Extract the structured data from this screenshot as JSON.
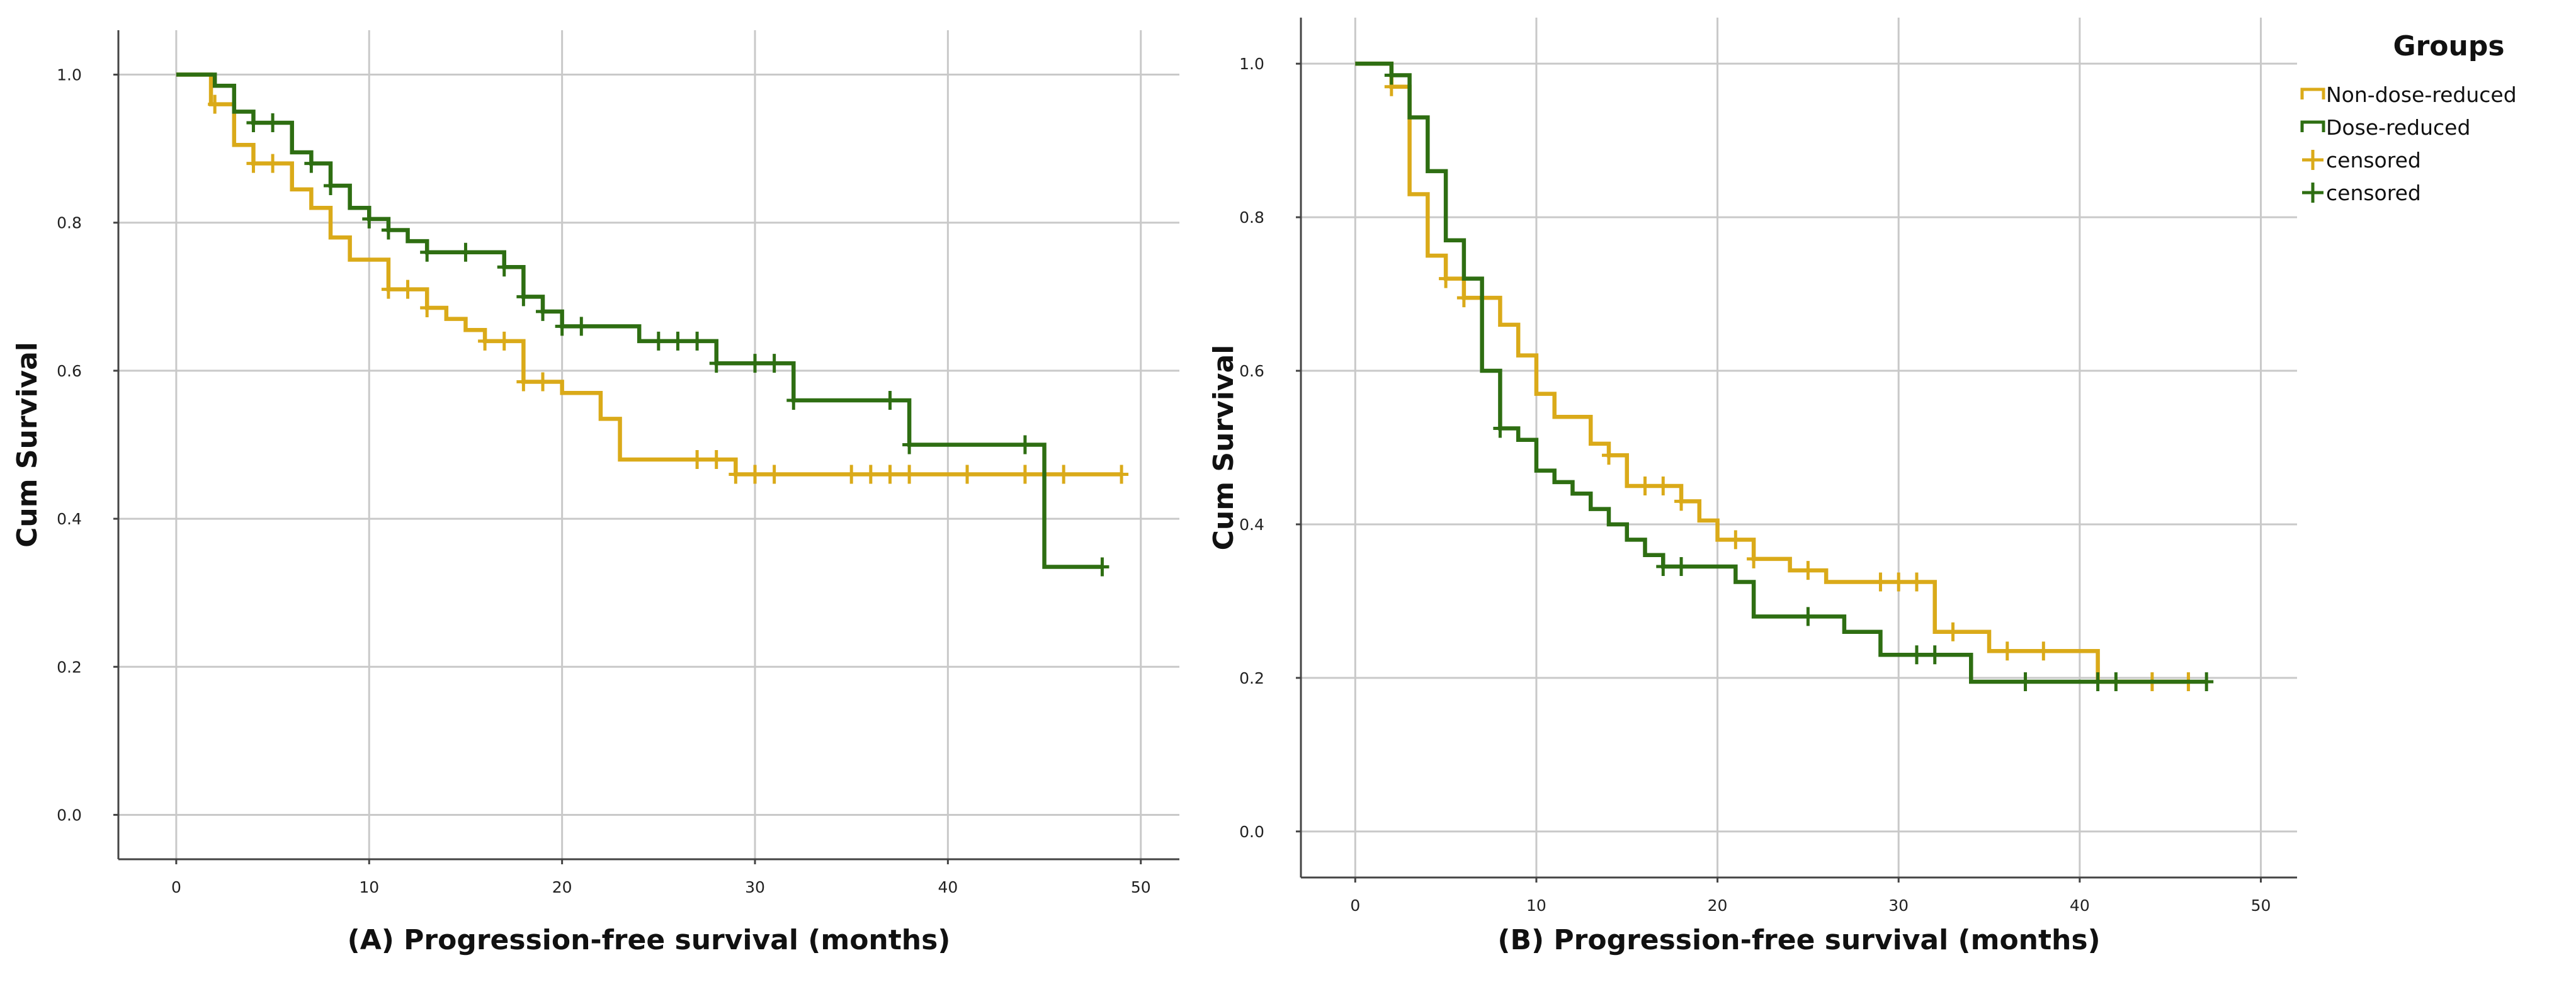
{
  "colors": {
    "non_dose_reduced": "#DAAA19",
    "dose_reduced": "#2E6E12",
    "grid": "#C9C9C9",
    "axis": "#444444"
  },
  "legend": {
    "title": "Groups",
    "items": [
      {
        "label": "Non-dose-reduced",
        "kind": "line",
        "series": "non"
      },
      {
        "label": "Dose-reduced",
        "kind": "line",
        "series": "dose"
      },
      {
        "label": "censored",
        "kind": "censor",
        "series": "non"
      },
      {
        "label": "censored",
        "kind": "censor",
        "series": "dose"
      }
    ]
  },
  "chart_data": [
    {
      "type": "line",
      "subtype": "kaplan-meier step",
      "title": "",
      "xlabel": "(A) Progression-free survival (months)",
      "ylabel": "Cum Survival",
      "xlim": [
        -3,
        52
      ],
      "ylim": [
        -0.06,
        1.06
      ],
      "xticks": [
        0,
        10,
        20,
        30,
        40,
        50
      ],
      "yticks": [
        "0.0",
        "0.2",
        "0.4",
        "0.6",
        "0.8",
        "1.0"
      ],
      "ytick_values": [
        0,
        0.2,
        0.4,
        0.6,
        0.8,
        1.0
      ],
      "grid": true,
      "series": [
        {
          "name": "Non-dose-reduced",
          "key": "non",
          "steps": [
            [
              0,
              1.0
            ],
            [
              1.8,
              0.96
            ],
            [
              3,
              0.905
            ],
            [
              4,
              0.88
            ],
            [
              6,
              0.845
            ],
            [
              7,
              0.82
            ],
            [
              8,
              0.78
            ],
            [
              9,
              0.75
            ],
            [
              11,
              0.71
            ],
            [
              13,
              0.685
            ],
            [
              14,
              0.67
            ],
            [
              15,
              0.655
            ],
            [
              16,
              0.64
            ],
            [
              18,
              0.585
            ],
            [
              20,
              0.57
            ],
            [
              22,
              0.535
            ],
            [
              23,
              0.48
            ],
            [
              29,
              0.46
            ]
          ],
          "end_x": 49,
          "censored_x": [
            2,
            4,
            5,
            11,
            12,
            13,
            16,
            17,
            18,
            19,
            27,
            28,
            29,
            30,
            31,
            35,
            36,
            37,
            38,
            41,
            44,
            46,
            49
          ]
        },
        {
          "name": "Dose-reduced",
          "key": "dose",
          "steps": [
            [
              0,
              1.0
            ],
            [
              2,
              0.985
            ],
            [
              3,
              0.95
            ],
            [
              4,
              0.935
            ],
            [
              6,
              0.895
            ],
            [
              7,
              0.88
            ],
            [
              8,
              0.85
            ],
            [
              9,
              0.82
            ],
            [
              10,
              0.805
            ],
            [
              11,
              0.79
            ],
            [
              12,
              0.775
            ],
            [
              13,
              0.76
            ],
            [
              17,
              0.74
            ],
            [
              18,
              0.7
            ],
            [
              19,
              0.68
            ],
            [
              20,
              0.66
            ],
            [
              24,
              0.64
            ],
            [
              28,
              0.61
            ],
            [
              32,
              0.56
            ],
            [
              38,
              0.5
            ],
            [
              45,
              0.335
            ]
          ],
          "end_x": 48,
          "censored_x": [
            4,
            5,
            7,
            8,
            10,
            11,
            13,
            15,
            17,
            18,
            19,
            20,
            21,
            25,
            26,
            27,
            28,
            30,
            31,
            32,
            37,
            38,
            44,
            48
          ]
        }
      ]
    },
    {
      "type": "line",
      "subtype": "kaplan-meier step",
      "title": "",
      "xlabel": "(B) Progression-free survival (months)",
      "ylabel": "Cum Survival",
      "xlim": [
        -3,
        52
      ],
      "ylim": [
        -0.06,
        1.06
      ],
      "xticks": [
        0,
        10,
        20,
        30,
        40,
        50
      ],
      "yticks": [
        "0.0",
        "0.2",
        "0.4",
        "0.6",
        "0.8",
        "1.0"
      ],
      "ytick_values": [
        0,
        0.2,
        0.4,
        0.6,
        0.8,
        1.0
      ],
      "grid": true,
      "series": [
        {
          "name": "Non-dose-reduced",
          "key": "non",
          "steps": [
            [
              0,
              1.0
            ],
            [
              2,
              0.97
            ],
            [
              3,
              0.83
            ],
            [
              4,
              0.75
            ],
            [
              5,
              0.72
            ],
            [
              6,
              0.695
            ],
            [
              8,
              0.66
            ],
            [
              9,
              0.62
            ],
            [
              10,
              0.57
            ],
            [
              11,
              0.54
            ],
            [
              13,
              0.505
            ],
            [
              14,
              0.49
            ],
            [
              15,
              0.45
            ],
            [
              18,
              0.43
            ],
            [
              19,
              0.405
            ],
            [
              20,
              0.38
            ],
            [
              22,
              0.355
            ],
            [
              24,
              0.34
            ],
            [
              26,
              0.325
            ],
            [
              32,
              0.26
            ],
            [
              35,
              0.235
            ],
            [
              41,
              0.195
            ]
          ],
          "end_x": 46,
          "censored_x": [
            2,
            5,
            6,
            14,
            16,
            17,
            18,
            21,
            22,
            25,
            29,
            30,
            31,
            33,
            36,
            38,
            44,
            46
          ]
        },
        {
          "name": "Dose-reduced",
          "key": "dose",
          "steps": [
            [
              0,
              1.0
            ],
            [
              2,
              0.985
            ],
            [
              3,
              0.93
            ],
            [
              4,
              0.86
            ],
            [
              5,
              0.77
            ],
            [
              6,
              0.72
            ],
            [
              7,
              0.6
            ],
            [
              8,
              0.525
            ],
            [
              9,
              0.51
            ],
            [
              10,
              0.47
            ],
            [
              11,
              0.455
            ],
            [
              12,
              0.44
            ],
            [
              13,
              0.42
            ],
            [
              14,
              0.4
            ],
            [
              15,
              0.38
            ],
            [
              16,
              0.36
            ],
            [
              17,
              0.345
            ],
            [
              21,
              0.325
            ],
            [
              22,
              0.28
            ],
            [
              27,
              0.26
            ],
            [
              29,
              0.23
            ],
            [
              34,
              0.195
            ]
          ],
          "end_x": 47,
          "censored_x": [
            2,
            8,
            17,
            18,
            25,
            31,
            32,
            37,
            41,
            42,
            47
          ]
        }
      ]
    }
  ]
}
